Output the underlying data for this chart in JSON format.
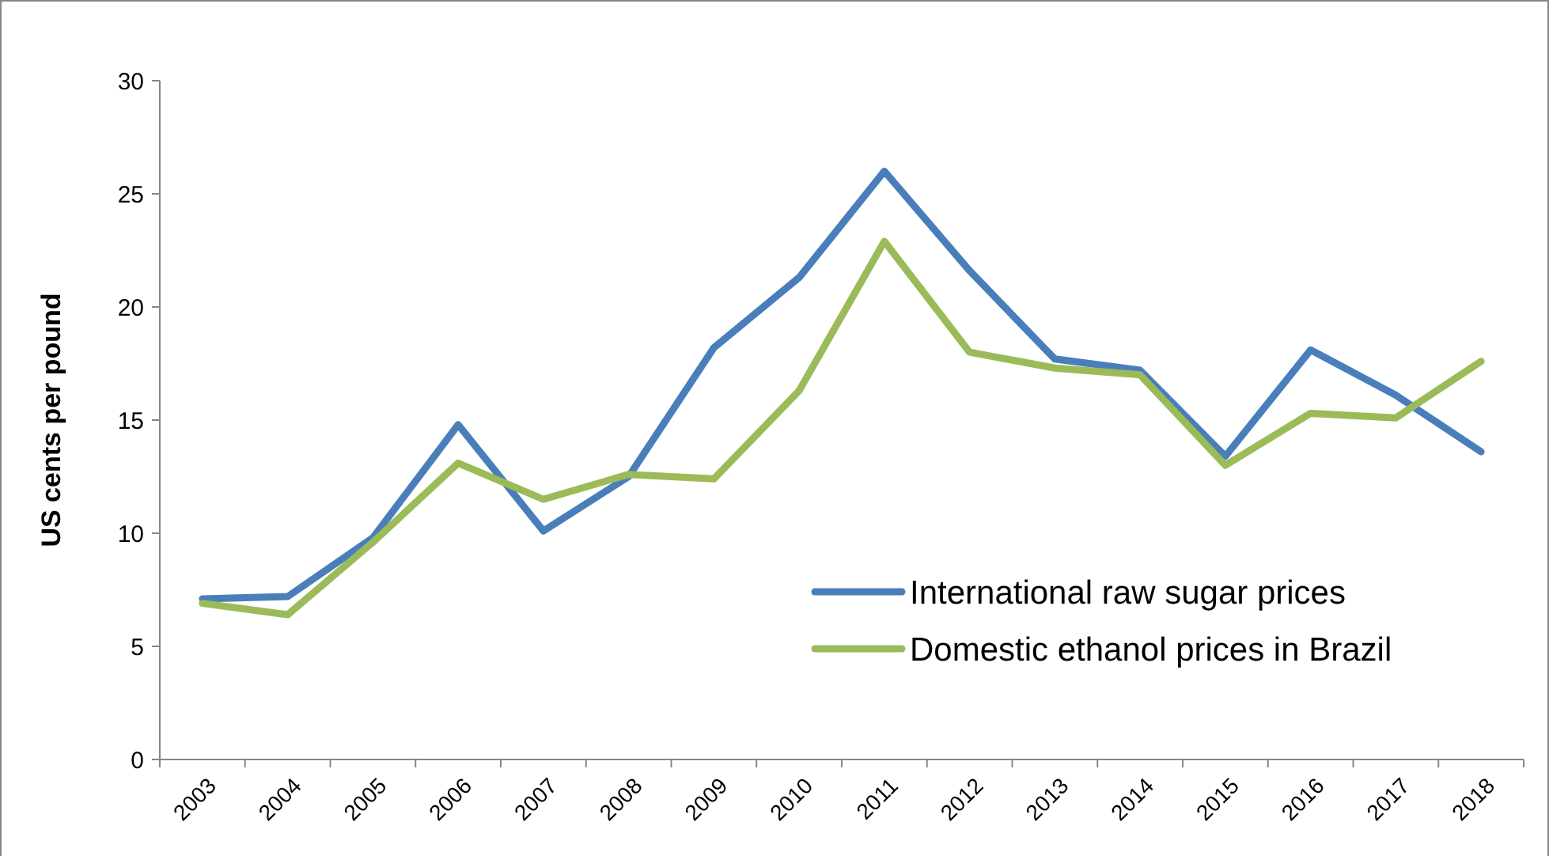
{
  "chart_data": {
    "type": "line",
    "ylabel": "US cents per pound",
    "categories": [
      "2003",
      "2004",
      "2005",
      "2006",
      "2007",
      "2008",
      "2009",
      "2010",
      "2011",
      "2012",
      "2013",
      "2014",
      "2015",
      "2016",
      "2017",
      "2018"
    ],
    "series": [
      {
        "name": "International raw sugar prices",
        "color": "#4a7ebb",
        "values": [
          7.1,
          7.2,
          9.8,
          14.8,
          10.1,
          12.5,
          18.2,
          21.3,
          26.0,
          21.6,
          17.7,
          17.2,
          13.4,
          18.1,
          16.1,
          13.6
        ]
      },
      {
        "name": "Domestic ethanol prices in Brazil",
        "color": "#9bbb59",
        "values": [
          6.9,
          6.4,
          9.6,
          13.1,
          11.5,
          12.6,
          12.4,
          16.3,
          22.9,
          18.0,
          17.3,
          17.0,
          13.0,
          15.3,
          15.1,
          17.6
        ]
      }
    ],
    "ylim": [
      0,
      30
    ],
    "yticks": [
      0,
      5,
      10,
      15,
      20,
      25,
      30
    ],
    "legend": "bottom right",
    "marker": "none",
    "line_style": "solid"
  }
}
